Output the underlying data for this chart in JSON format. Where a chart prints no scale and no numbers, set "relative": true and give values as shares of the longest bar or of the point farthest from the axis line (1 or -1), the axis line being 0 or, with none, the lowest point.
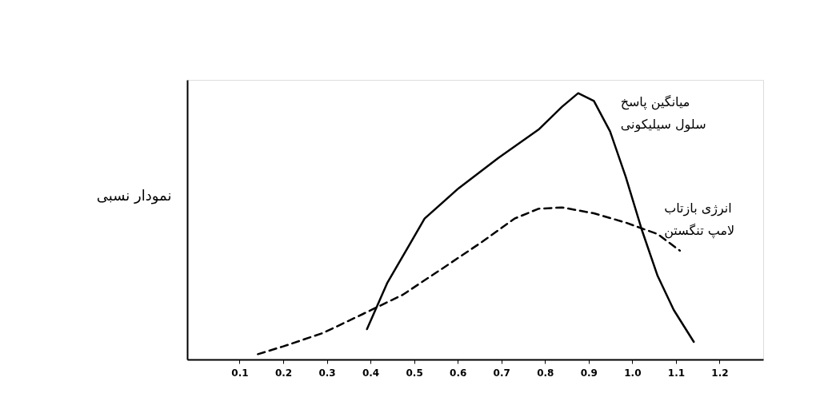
{
  "chart_data": {
    "type": "line",
    "relative": true,
    "ylabel": "نمودار نسبی",
    "xlim": [
      -0.02,
      1.3
    ],
    "xticks": [
      0.1,
      0.2,
      0.3,
      0.4,
      0.5,
      0.6,
      0.7,
      0.8,
      0.9,
      {
        "value": 1,
        "label": "1.0"
      },
      1.1,
      1.2
    ],
    "marker": "none",
    "series": [
      {
        "color": "#000000",
        "line_style": "solid",
        "x": [
          0.392,
          0.438,
          0.524,
          0.602,
          0.693,
          0.785,
          0.839,
          0.876,
          0.912,
          0.949,
          0.985,
          1.022,
          1.058,
          1.095,
          1.141
        ],
        "values": [
          0.114,
          0.286,
          0.529,
          0.643,
          0.757,
          0.863,
          0.949,
          1,
          0.971,
          0.857,
          0.686,
          0.486,
          0.314,
          0.186,
          0.066
        ]
      },
      {
        "color": "#000000",
        "line_style": "dashed",
        "x": [
          0.142,
          0.2,
          0.292,
          0.383,
          0.474,
          0.566,
          0.657,
          0.73,
          0.785,
          0.839,
          0.912,
          0.985,
          1.058,
          1.109
        ],
        "values": [
          0.02,
          0.049,
          0.1,
          0.171,
          0.243,
          0.343,
          0.443,
          0.529,
          0.566,
          0.571,
          0.549,
          0.514,
          0.471,
          0.409
        ]
      }
    ],
    "annotations": [
      {
        "text": "میانگین پاسخ\nسلول سیلیکونی",
        "x": 0.94,
        "y": 0.886
      },
      {
        "text": "انرژی بازتاب\nلامپ تنگستن",
        "x": 1.04,
        "y": 0.486
      }
    ]
  }
}
